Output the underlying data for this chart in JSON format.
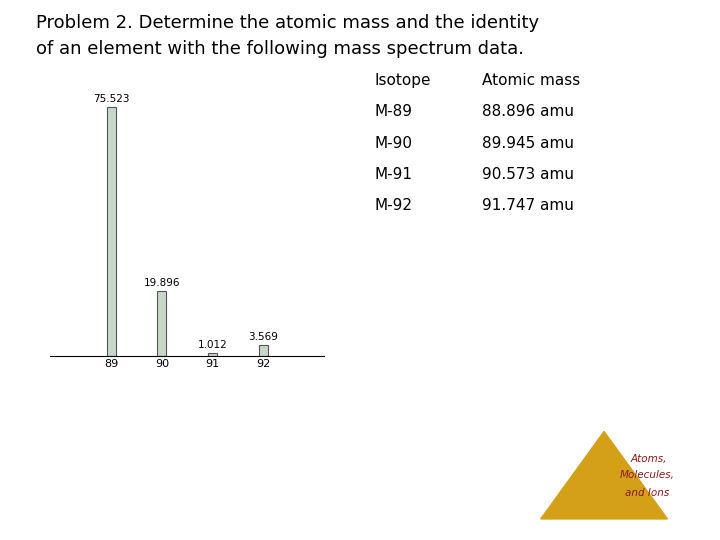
{
  "title_line1": "Problem 2. Determine the atomic mass and the identity",
  "title_line2": "of an element with the following mass spectrum data.",
  "title_fontsize": 13,
  "background_color": "#ffffff",
  "isotopes": [
    89,
    90,
    91,
    92
  ],
  "abundances": [
    75.523,
    19.896,
    1.012,
    3.569
  ],
  "bar_color": "#c8d8c8",
  "bar_edge_color": "#555555",
  "bar_width": 0.18,
  "xlim": [
    87.8,
    93.2
  ],
  "ylim": [
    0,
    85
  ],
  "table_header": [
    "Isotope",
    "Atomic mass"
  ],
  "table_rows": [
    [
      "M-89",
      "88.896 amu"
    ],
    [
      "M-90",
      "89.945 amu"
    ],
    [
      "M-91",
      "90.573 amu"
    ],
    [
      "M-92",
      "91.747 amu"
    ]
  ],
  "table_fontsize": 11,
  "label_fontsize": 7.5,
  "tick_fontsize": 8,
  "logo_text_line1": "Atoms,",
  "logo_text_line2": "Molecules,",
  "logo_text_line3": "and Ions",
  "logo_color": "#d4a017",
  "logo_text_color": "#8b1a1a"
}
